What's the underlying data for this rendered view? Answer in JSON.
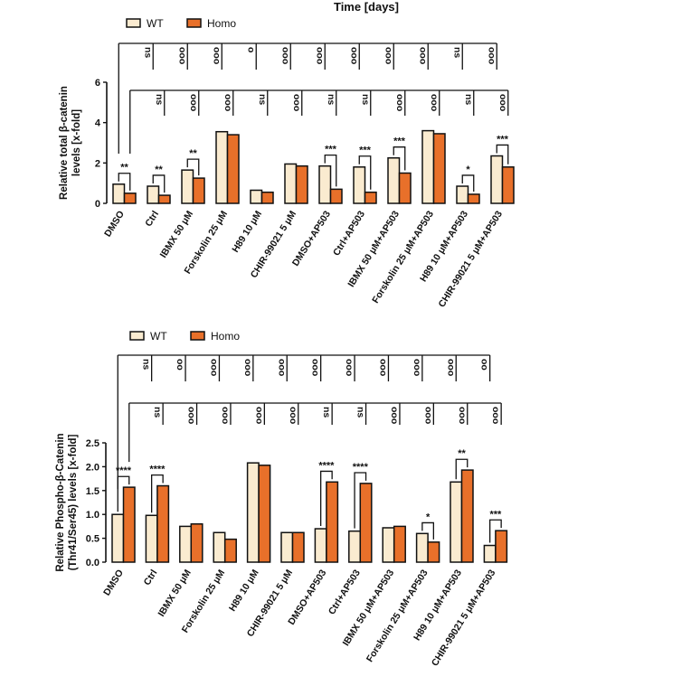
{
  "title": "Time [days]",
  "legend": {
    "wt": "WT",
    "homo": "Homo"
  },
  "colors": {
    "wt": "#FAEBD0",
    "homo": "#E8702A",
    "stroke": "#111111"
  },
  "chart_data": [
    {
      "type": "bar",
      "ylabel": [
        "Relative total β-catenin",
        "levels [x-fold]"
      ],
      "ylim": [
        0,
        6
      ],
      "yticks": [
        "0",
        "2",
        "4",
        "6"
      ],
      "legend_position": "top-left",
      "categories": [
        "DMSO",
        "Ctrl",
        "IBMX 50 μM",
        "Forskolin 25 μM",
        "H89 10 μM",
        "CHIR-99021 5 μM",
        "DMSO+AP503",
        "Ctrl+AP503",
        "IBMX 50 μM+AP503",
        "Forskolin 25 μM+AP503",
        "H89 10 μM+AP503",
        "CHIR-99021 5 μM+AP503"
      ],
      "series": [
        {
          "name": "WT",
          "values": [
            0.95,
            0.85,
            1.65,
            3.55,
            0.65,
            1.95,
            1.85,
            1.8,
            2.25,
            3.6,
            0.85,
            2.35
          ]
        },
        {
          "name": "Homo",
          "values": [
            0.5,
            0.4,
            1.25,
            3.4,
            0.55,
            1.85,
            0.7,
            0.55,
            1.5,
            3.45,
            0.45,
            1.8
          ]
        }
      ],
      "pair_significance": [
        "**",
        "**",
        "**",
        "",
        "",
        "",
        "***",
        "***",
        "***",
        "",
        "*",
        "***"
      ],
      "wt_vs_dmso": [
        "ns",
        "ooo",
        "ooo",
        "o",
        "ooo",
        "ooo",
        "ooo",
        "ooo",
        "ooo",
        "ns",
        "ooo"
      ],
      "homo_vs_dmso": [
        "ns",
        "ooo",
        "ooo",
        "ns",
        "ooo",
        "ns",
        "ns",
        "ooo",
        "ooo",
        "ns",
        "ooo"
      ]
    },
    {
      "type": "bar",
      "ylabel": [
        "Relative Phospho-β-Catenin",
        "(Thr41/Ser45) levels [x-fold]"
      ],
      "ylim": [
        0,
        2.5
      ],
      "yticks": [
        "0.0",
        "0.5",
        "1.0",
        "1.5",
        "2.0",
        "2.5"
      ],
      "legend_position": "top-left",
      "categories": [
        "DMSO",
        "Ctrl",
        "IBMX 50 μM",
        "Forskolin 25 μM",
        "H89 10 μM",
        "CHIR-99021 5 μM",
        "DMSO+AP503",
        "Ctrl+AP503",
        "IBMX 50 μM+AP503",
        "Forskolin 25 μM+AP503",
        "H89 10 μM+AP503",
        "CHIR-99021 5 μM+AP503"
      ],
      "series": [
        {
          "name": "WT",
          "values": [
            1.0,
            0.98,
            0.75,
            0.62,
            2.08,
            0.62,
            0.7,
            0.65,
            0.72,
            0.6,
            1.68,
            0.35
          ]
        },
        {
          "name": "Homo",
          "values": [
            1.57,
            1.6,
            0.8,
            0.48,
            2.03,
            0.62,
            1.68,
            1.65,
            0.75,
            0.42,
            1.93,
            0.66
          ]
        }
      ],
      "pair_significance": [
        "****",
        "****",
        "",
        "",
        "",
        "",
        "****",
        "****",
        "",
        "*",
        "**",
        "***"
      ],
      "wt_vs_dmso": [
        "ns",
        "oo",
        "ooo",
        "ooo",
        "ooo",
        "ooo",
        "ooo",
        "ooo",
        "ooo",
        "ooo",
        "oo"
      ],
      "homo_vs_dmso": [
        "ns",
        "ooo",
        "ooo",
        "ooo",
        "ooo",
        "ns",
        "ns",
        "ooo",
        "ooo",
        "ooo",
        "ooo"
      ]
    }
  ]
}
